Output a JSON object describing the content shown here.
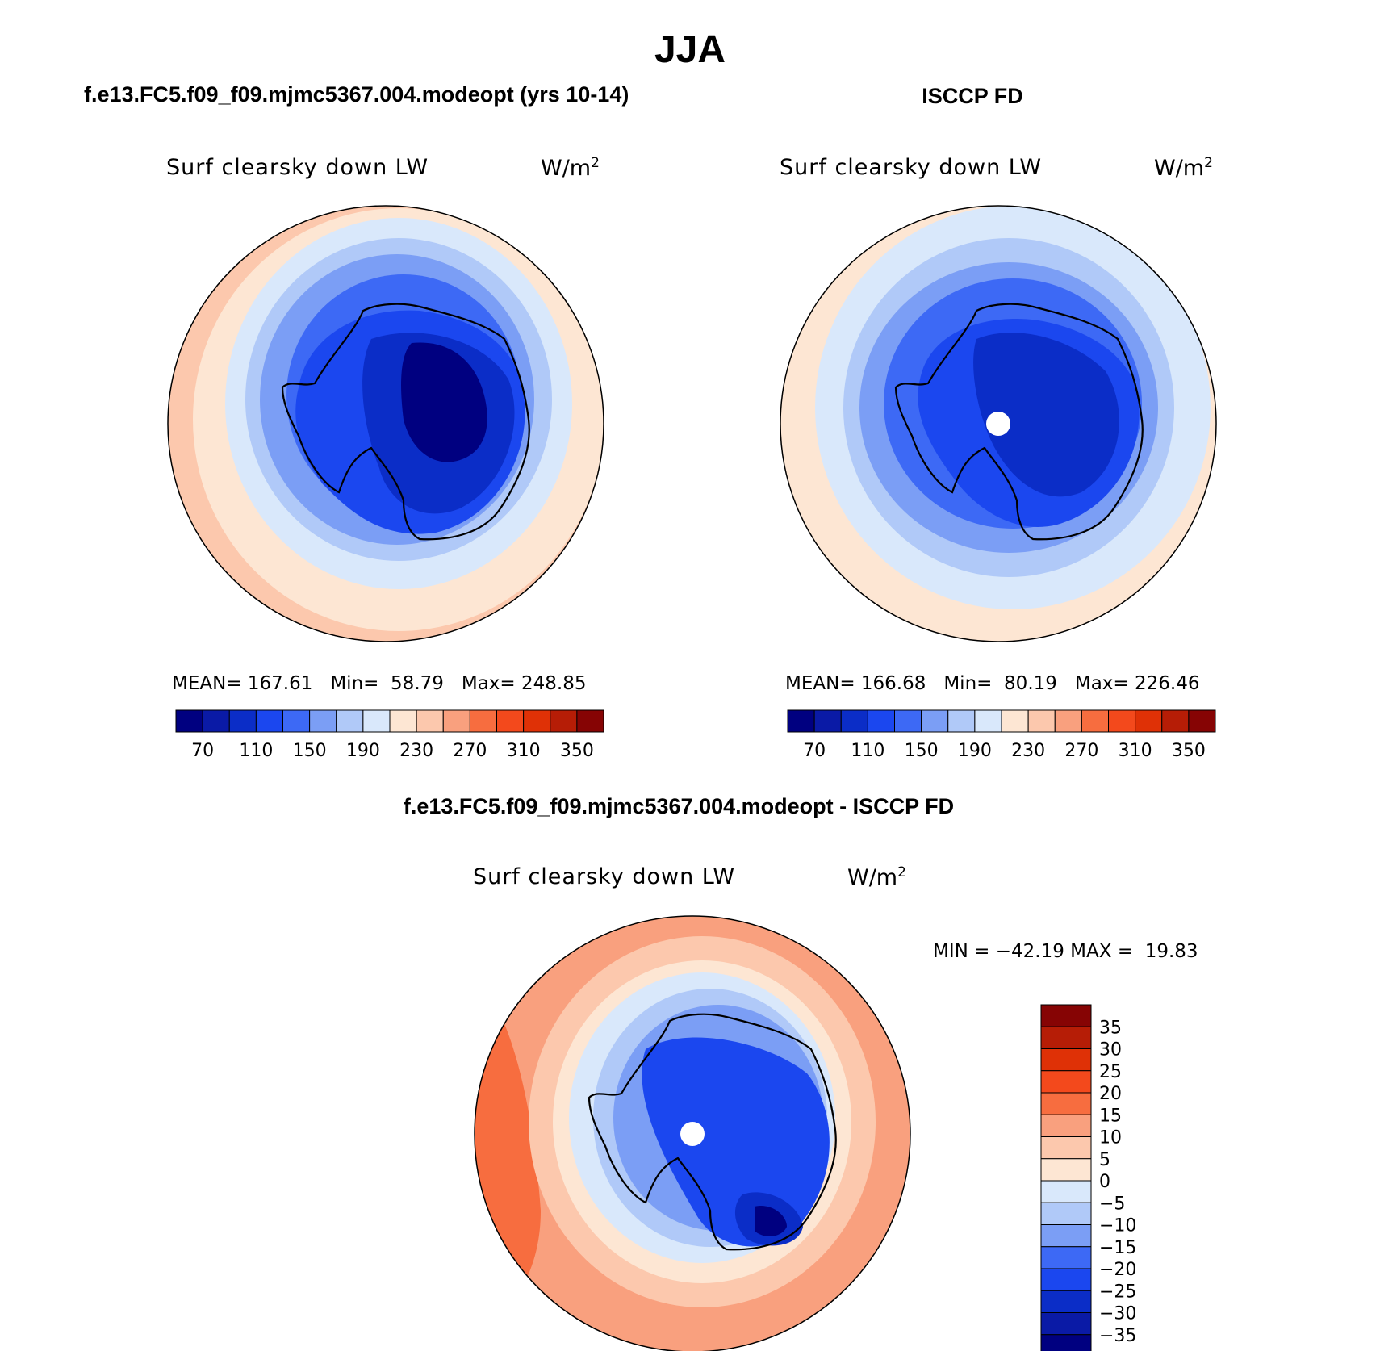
{
  "figure": {
    "title": "JJA"
  },
  "panels": [
    {
      "heading": "f.e13.FC5.f09_f09.mjmc5367.004.modeopt (yrs 10-14)",
      "variable": "Surf clearsky down LW",
      "units_base": "W/m",
      "units_sup": "2",
      "stats": {
        "mean_label": "MEAN=",
        "mean": "167.61",
        "min_label": "Min=",
        "min": "58.79",
        "max_label": "Max=",
        "max": "248.85"
      }
    },
    {
      "heading": "ISCCP FD",
      "variable": "Surf clearsky down LW",
      "units_base": "W/m",
      "units_sup": "2",
      "stats": {
        "mean_label": "MEAN=",
        "mean": "166.68",
        "min_label": "Min=",
        "min": "80.19",
        "max_label": "Max=",
        "max": "226.46"
      }
    },
    {
      "heading": "f.e13.FC5.f09_f09.mjmc5367.004.modeopt - ISCCP FD",
      "variable": "Surf clearsky down LW",
      "units_base": "W/m",
      "units_sup": "2",
      "stats": {
        "min_label": "MIN =",
        "min": "−42.19",
        "max_label": "MAX =",
        "max": "19.83"
      }
    }
  ],
  "colorbars": {
    "absolute": {
      "colors": [
        "#000080",
        "#0a1aa6",
        "#0b2dc7",
        "#1b47ef",
        "#3d69f5",
        "#7b9ef5",
        "#b0c9f8",
        "#d9e8fb",
        "#fde6d3",
        "#fcc8ad",
        "#f9a07e",
        "#f76d3f",
        "#f3491c",
        "#df3106",
        "#b61d06",
        "#860404"
      ],
      "tick_labels": [
        "70",
        "110",
        "150",
        "190",
        "230",
        "270",
        "310",
        "350"
      ]
    },
    "difference": {
      "colors": [
        "#000080",
        "#0a1aa6",
        "#0b2dc7",
        "#1b47ef",
        "#3d69f5",
        "#7b9ef5",
        "#b0c9f8",
        "#d9e8fb",
        "#fde6d3",
        "#fcc8ad",
        "#f9a07e",
        "#f76d3f",
        "#f3491c",
        "#df3106",
        "#b61d06",
        "#860404"
      ],
      "tick_labels": [
        "35",
        "30",
        "25",
        "20",
        "15",
        "10",
        "5",
        "0",
        "−5",
        "−10",
        "−15",
        "−20",
        "−25",
        "−30",
        "−35"
      ]
    }
  }
}
